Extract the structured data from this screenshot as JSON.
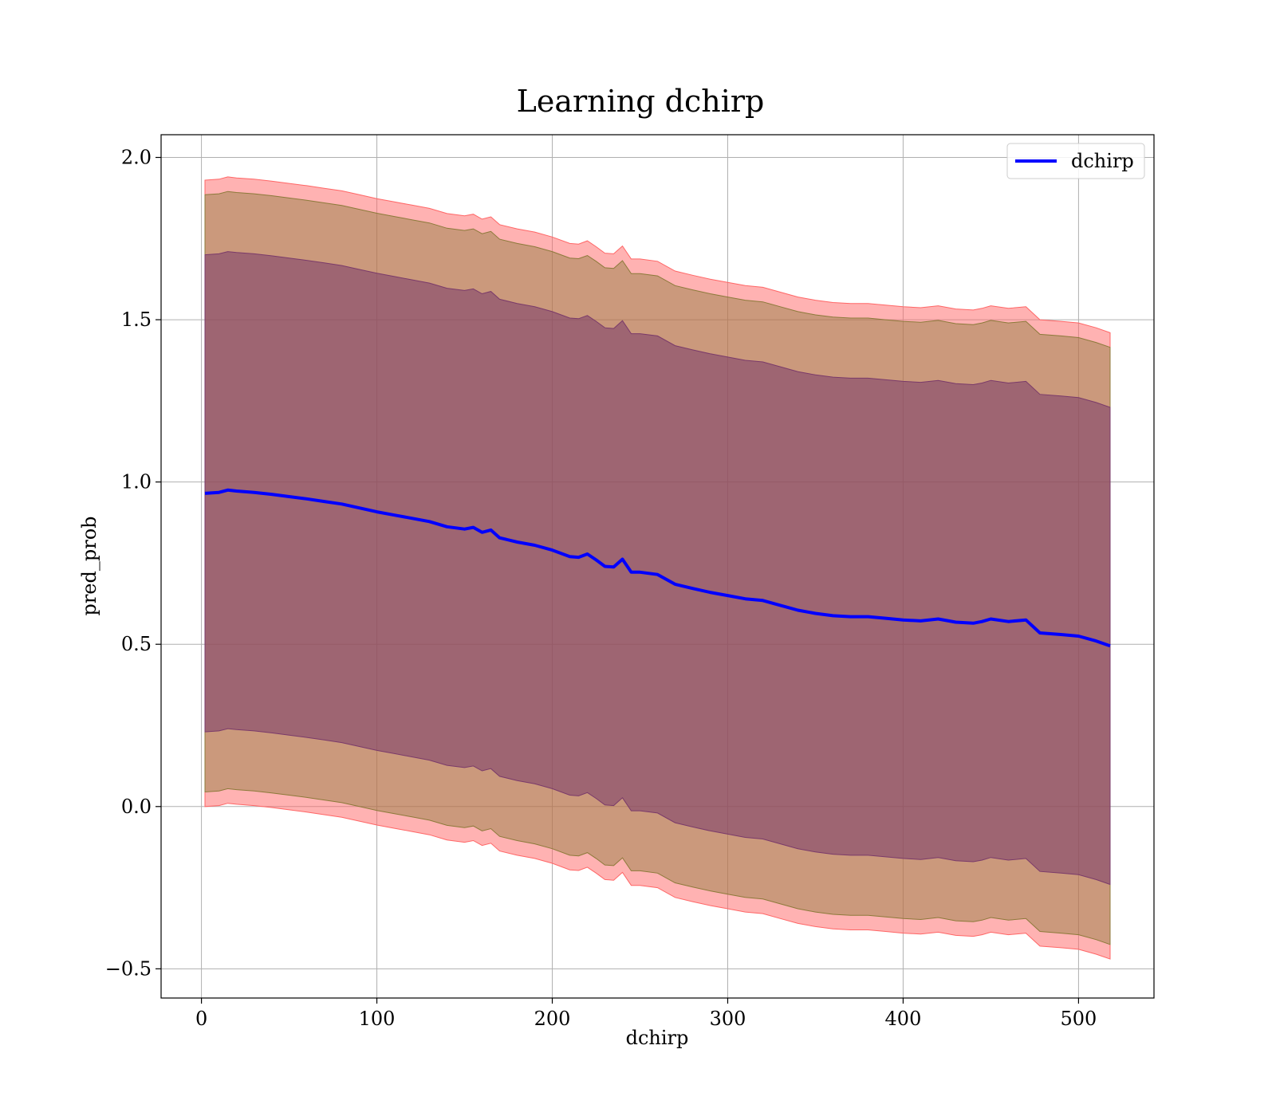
{
  "chart_data": {
    "type": "area",
    "title": "Learning dchirp",
    "xlabel": "dchirp",
    "ylabel": "pred_prob",
    "xlim": [
      -23,
      543
    ],
    "ylim": [
      -0.59,
      2.07
    ],
    "xticks": [
      0,
      100,
      200,
      300,
      400,
      500
    ],
    "yticks": [
      -0.5,
      0.0,
      0.5,
      1.0,
      1.5,
      2.0
    ],
    "xtick_labels": [
      "0",
      "100",
      "200",
      "300",
      "400",
      "500"
    ],
    "ytick_labels": [
      "−0.5",
      "0.0",
      "0.5",
      "1.0",
      "1.5",
      "2.0"
    ],
    "grid": true,
    "legend": {
      "placement": "top-right",
      "entries": [
        "dchirp"
      ]
    },
    "x": [
      2,
      10,
      15,
      20,
      30,
      40,
      50,
      60,
      70,
      80,
      90,
      100,
      110,
      120,
      130,
      140,
      150,
      155,
      160,
      165,
      170,
      180,
      190,
      200,
      210,
      215,
      220,
      225,
      230,
      235,
      240,
      245,
      250,
      260,
      270,
      280,
      290,
      300,
      310,
      320,
      330,
      340,
      350,
      360,
      370,
      380,
      390,
      400,
      410,
      420,
      430,
      440,
      445,
      450,
      460,
      470,
      478,
      490,
      500,
      510,
      518
    ],
    "series": [
      {
        "name": "dchirp",
        "color": "#0000ff",
        "values": [
          0.965,
          0.968,
          0.975,
          0.972,
          0.968,
          0.962,
          0.955,
          0.948,
          0.94,
          0.932,
          0.92,
          0.908,
          0.898,
          0.888,
          0.878,
          0.862,
          0.855,
          0.86,
          0.845,
          0.852,
          0.828,
          0.815,
          0.805,
          0.79,
          0.77,
          0.768,
          0.778,
          0.76,
          0.74,
          0.738,
          0.762,
          0.722,
          0.722,
          0.715,
          0.685,
          0.672,
          0.66,
          0.65,
          0.64,
          0.635,
          0.62,
          0.605,
          0.595,
          0.588,
          0.585,
          0.585,
          0.58,
          0.575,
          0.572,
          0.578,
          0.568,
          0.565,
          0.57,
          0.578,
          0.57,
          0.575,
          0.535,
          0.53,
          0.525,
          0.51,
          0.495
        ]
      }
    ],
    "bands": [
      {
        "color": "#ff6666",
        "opacity": 0.5,
        "halfwidth": 0.965
      },
      {
        "color": "#8c7a3a",
        "opacity": 0.45,
        "halfwidth": 0.92
      },
      {
        "color": "#7a3a6a",
        "opacity": 0.55,
        "halfwidth": 0.735
      }
    ]
  }
}
